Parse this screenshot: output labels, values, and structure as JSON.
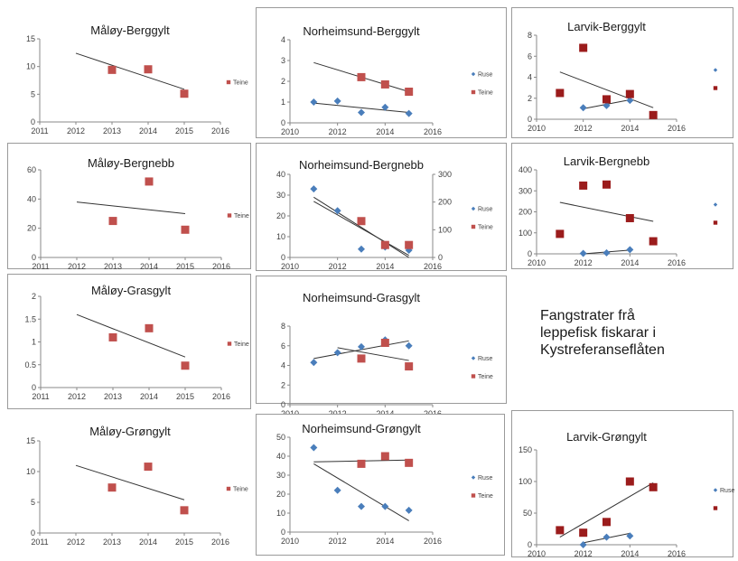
{
  "caption": [
    "Fangstrater frå",
    "leppefisk fiskarar i",
    "Kystreferanseflåten"
  ],
  "colors": {
    "ruse": "#4a7ebb",
    "teine": "#c0504d",
    "teine_dark": "#9b1c1c",
    "trend": "#333333",
    "border": "#9a9a9a"
  },
  "chart_data": [
    {
      "type": "scatter",
      "title": "Måløy-Berggylt",
      "xlim": [
        2011,
        2016
      ],
      "ylim": [
        0,
        15
      ],
      "xticks": [
        "2011",
        "2012",
        "2013",
        "2014",
        "2015",
        "2016"
      ],
      "yticks": [
        "0",
        "5",
        "10",
        "15"
      ],
      "grid": false,
      "legend": [
        {
          "name": "Teine",
          "series": "teine"
        }
      ],
      "series": [
        {
          "key": "teine",
          "x": [
            2013,
            2014,
            2015
          ],
          "y": [
            9.4,
            9.5,
            5.1
          ]
        }
      ],
      "trends": [
        {
          "x": [
            2012,
            2015
          ],
          "y": [
            12.4,
            5.9
          ]
        }
      ]
    },
    {
      "type": "scatter",
      "title": "Norheimsund-Berggylt",
      "xlim": [
        2010,
        2016
      ],
      "ylim": [
        0,
        4
      ],
      "xticks": [
        "2010",
        "2012",
        "2014",
        "2016"
      ],
      "yticks": [
        "0",
        "1",
        "2",
        "3",
        "4"
      ],
      "grid": false,
      "legend": [
        {
          "name": "Ruse",
          "series": "ruse"
        },
        {
          "name": "Teine",
          "series": "teine"
        }
      ],
      "series": [
        {
          "key": "ruse",
          "x": [
            2011,
            2012,
            2013,
            2014,
            2015
          ],
          "y": [
            1.0,
            1.05,
            0.5,
            0.75,
            0.45
          ]
        },
        {
          "key": "teine",
          "x": [
            2013,
            2014,
            2015
          ],
          "y": [
            2.2,
            1.85,
            1.5
          ]
        }
      ],
      "trends": [
        {
          "x": [
            2011,
            2015
          ],
          "y": [
            2.9,
            1.5
          ]
        },
        {
          "x": [
            2011,
            2015
          ],
          "y": [
            0.95,
            0.5
          ]
        }
      ]
    },
    {
      "type": "scatter",
      "title": "Larvik-Berggylt",
      "xlim": [
        2010,
        2016
      ],
      "ylim": [
        0,
        8
      ],
      "xticks": [
        "2010",
        "2012",
        "2014",
        "2016"
      ],
      "yticks": [
        "0",
        "2",
        "4",
        "6",
        "8"
      ],
      "grid": false,
      "legend": [
        {
          "name": "",
          "series": "ruse"
        },
        {
          "name": "",
          "series": "teine_dark"
        }
      ],
      "series": [
        {
          "key": "ruse",
          "x": [
            2012,
            2013,
            2014
          ],
          "y": [
            1.1,
            1.3,
            1.8
          ]
        },
        {
          "key": "teine_dark",
          "x": [
            2011,
            2012,
            2013,
            2014,
            2015
          ],
          "y": [
            2.5,
            6.8,
            1.9,
            2.4,
            0.4
          ]
        }
      ],
      "trends": [
        {
          "x": [
            2011,
            2015
          ],
          "y": [
            4.5,
            1.1
          ]
        },
        {
          "x": [
            2012,
            2014
          ],
          "y": [
            1.0,
            1.85
          ]
        }
      ]
    },
    {
      "type": "scatter",
      "title": "Måløy-Bergnebb",
      "xlim": [
        2011,
        2016
      ],
      "ylim": [
        0,
        60
      ],
      "xticks": [
        "2011",
        "2012",
        "2013",
        "2014",
        "2015",
        "2016"
      ],
      "yticks": [
        "0",
        "20",
        "40",
        "60"
      ],
      "grid": false,
      "legend": [
        {
          "name": "Teine",
          "series": "teine"
        }
      ],
      "series": [
        {
          "key": "teine",
          "x": [
            2013,
            2014,
            2015
          ],
          "y": [
            25,
            52,
            19
          ]
        }
      ],
      "trends": [
        {
          "x": [
            2012,
            2015
          ],
          "y": [
            38,
            30
          ]
        }
      ]
    },
    {
      "type": "scatter",
      "title": "Norheimsund-Bergnebb",
      "xlim": [
        2010,
        2016
      ],
      "ylim": [
        0,
        40
      ],
      "y2lim": [
        0,
        300
      ],
      "y2ticks": [
        "0",
        "100",
        "200",
        "300"
      ],
      "xticks": [
        "2010",
        "2012",
        "2014",
        "2016"
      ],
      "yticks": [
        "0",
        "10",
        "20",
        "30",
        "40"
      ],
      "grid": false,
      "legend": [
        {
          "name": "Ruse",
          "series": "ruse"
        },
        {
          "name": "Teine",
          "series": "teine"
        }
      ],
      "series": [
        {
          "key": "ruse",
          "x": [
            2011,
            2012,
            2013,
            2014,
            2015
          ],
          "y": [
            33,
            22.5,
            4,
            5,
            3.5
          ]
        },
        {
          "key": "teine",
          "x": [
            2013,
            2014,
            2015
          ],
          "y": [
            17.5,
            6,
            6
          ]
        }
      ],
      "trends": [
        {
          "x": [
            2011,
            2015
          ],
          "y": [
            29,
            0
          ]
        },
        {
          "x": [
            2011,
            2015
          ],
          "y": [
            27,
            1
          ]
        }
      ]
    },
    {
      "type": "scatter",
      "title": "Larvik-Bergnebb",
      "xlim": [
        2010,
        2016
      ],
      "ylim": [
        0,
        400
      ],
      "xticks": [
        "2010",
        "2012",
        "2014",
        "2016"
      ],
      "yticks": [
        "0",
        "100",
        "200",
        "300",
        "400"
      ],
      "grid": false,
      "legend": [
        {
          "name": "",
          "series": "ruse"
        },
        {
          "name": "",
          "series": "teine_dark"
        }
      ],
      "series": [
        {
          "key": "ruse",
          "x": [
            2012,
            2013,
            2014
          ],
          "y": [
            2,
            5,
            20
          ]
        },
        {
          "key": "teine_dark",
          "x": [
            2011,
            2012,
            2013,
            2014,
            2015
          ],
          "y": [
            95,
            325,
            330,
            170,
            60
          ]
        }
      ],
      "trends": [
        {
          "x": [
            2011,
            2015
          ],
          "y": [
            245,
            155
          ]
        },
        {
          "x": [
            2012,
            2014
          ],
          "y": [
            0,
            18
          ]
        }
      ]
    },
    {
      "type": "scatter",
      "title": "Måløy-Grasgylt",
      "xlim": [
        2011,
        2016
      ],
      "ylim": [
        0,
        2
      ],
      "xticks": [
        "2011",
        "2012",
        "2013",
        "2014",
        "2015",
        "2016"
      ],
      "yticks": [
        "0",
        "0.5",
        "1",
        "1.5",
        "2"
      ],
      "grid": false,
      "legend": [
        {
          "name": "Teine",
          "series": "teine"
        }
      ],
      "series": [
        {
          "key": "teine",
          "x": [
            2013,
            2014,
            2015
          ],
          "y": [
            1.1,
            1.3,
            0.48
          ]
        }
      ],
      "trends": [
        {
          "x": [
            2012,
            2015
          ],
          "y": [
            1.6,
            0.67
          ]
        }
      ]
    },
    {
      "type": "scatter",
      "title": "Norheimsund-Grasgylt",
      "xlim": [
        2010,
        2016
      ],
      "ylim": [
        0,
        8
      ],
      "xticks": [
        "2010",
        "2012",
        "2014",
        "2016"
      ],
      "yticks": [
        "0",
        "2",
        "4",
        "6",
        "8"
      ],
      "grid": false,
      "legend": [
        {
          "name": "Ruse",
          "series": "ruse"
        },
        {
          "name": "Teine",
          "series": "teine"
        }
      ],
      "series": [
        {
          "key": "ruse",
          "x": [
            2011,
            2012,
            2013,
            2014,
            2015
          ],
          "y": [
            4.3,
            5.3,
            5.9,
            6.6,
            6.0
          ]
        },
        {
          "key": "teine",
          "x": [
            2013,
            2014,
            2015
          ],
          "y": [
            4.7,
            6.3,
            3.9
          ]
        }
      ],
      "trends": [
        {
          "x": [
            2011,
            2015
          ],
          "y": [
            4.7,
            6.5
          ]
        },
        {
          "x": [
            2012,
            2015
          ],
          "y": [
            5.8,
            4.5
          ]
        }
      ]
    },
    {
      "type": "scatter",
      "title": "Måløy-Grøngylt",
      "xlim": [
        2011,
        2016
      ],
      "ylim": [
        0,
        15
      ],
      "xticks": [
        "2011",
        "2012",
        "2013",
        "2014",
        "2015",
        "2016"
      ],
      "yticks": [
        "0",
        "5",
        "10",
        "15"
      ],
      "grid": false,
      "legend": [
        {
          "name": "Teine",
          "series": "teine"
        }
      ],
      "series": [
        {
          "key": "teine",
          "x": [
            2013,
            2014,
            2015
          ],
          "y": [
            7.4,
            10.8,
            3.7
          ]
        }
      ],
      "trends": [
        {
          "x": [
            2012,
            2015
          ],
          "y": [
            11.0,
            5.4
          ]
        }
      ]
    },
    {
      "type": "scatter",
      "title": "Norheimsund-Grøngylt",
      "xlim": [
        2010,
        2016
      ],
      "ylim": [
        0,
        50
      ],
      "xticks": [
        "2010",
        "2012",
        "2014",
        "2016"
      ],
      "yticks": [
        "0",
        "10",
        "20",
        "30",
        "40",
        "50"
      ],
      "grid": false,
      "legend": [
        {
          "name": "Ruse",
          "series": "ruse"
        },
        {
          "name": "Teine",
          "series": "teine"
        }
      ],
      "series": [
        {
          "key": "ruse",
          "x": [
            2011,
            2012,
            2013,
            2014,
            2015
          ],
          "y": [
            44.5,
            22,
            13.5,
            13.5,
            11.5
          ]
        },
        {
          "key": "teine",
          "x": [
            2013,
            2014,
            2015
          ],
          "y": [
            36,
            40,
            36.5
          ]
        }
      ],
      "trends": [
        {
          "x": [
            2011,
            2015
          ],
          "y": [
            37,
            38
          ]
        },
        {
          "x": [
            2011,
            2015
          ],
          "y": [
            36,
            6
          ]
        }
      ]
    },
    {
      "type": "scatter",
      "title": "Larvik-Grøngylt",
      "xlim": [
        2010,
        2016
      ],
      "ylim": [
        0,
        150
      ],
      "xticks": [
        "2010",
        "2012",
        "2014",
        "2016"
      ],
      "yticks": [
        "0",
        "50",
        "100",
        "150"
      ],
      "grid": false,
      "legend": [
        {
          "name": "Ruse",
          "series": "ruse"
        },
        {
          "name": "",
          "series": "teine_dark"
        }
      ],
      "series": [
        {
          "key": "ruse",
          "x": [
            2012,
            2013,
            2014
          ],
          "y": [
            0,
            12,
            14
          ]
        },
        {
          "key": "teine_dark",
          "x": [
            2011,
            2012,
            2013,
            2014,
            2015
          ],
          "y": [
            23,
            19,
            36,
            100,
            91
          ]
        }
      ],
      "trends": [
        {
          "x": [
            2011,
            2015
          ],
          "y": [
            12,
            98
          ]
        },
        {
          "x": [
            2012,
            2014
          ],
          "y": [
            3,
            18
          ]
        }
      ]
    }
  ]
}
